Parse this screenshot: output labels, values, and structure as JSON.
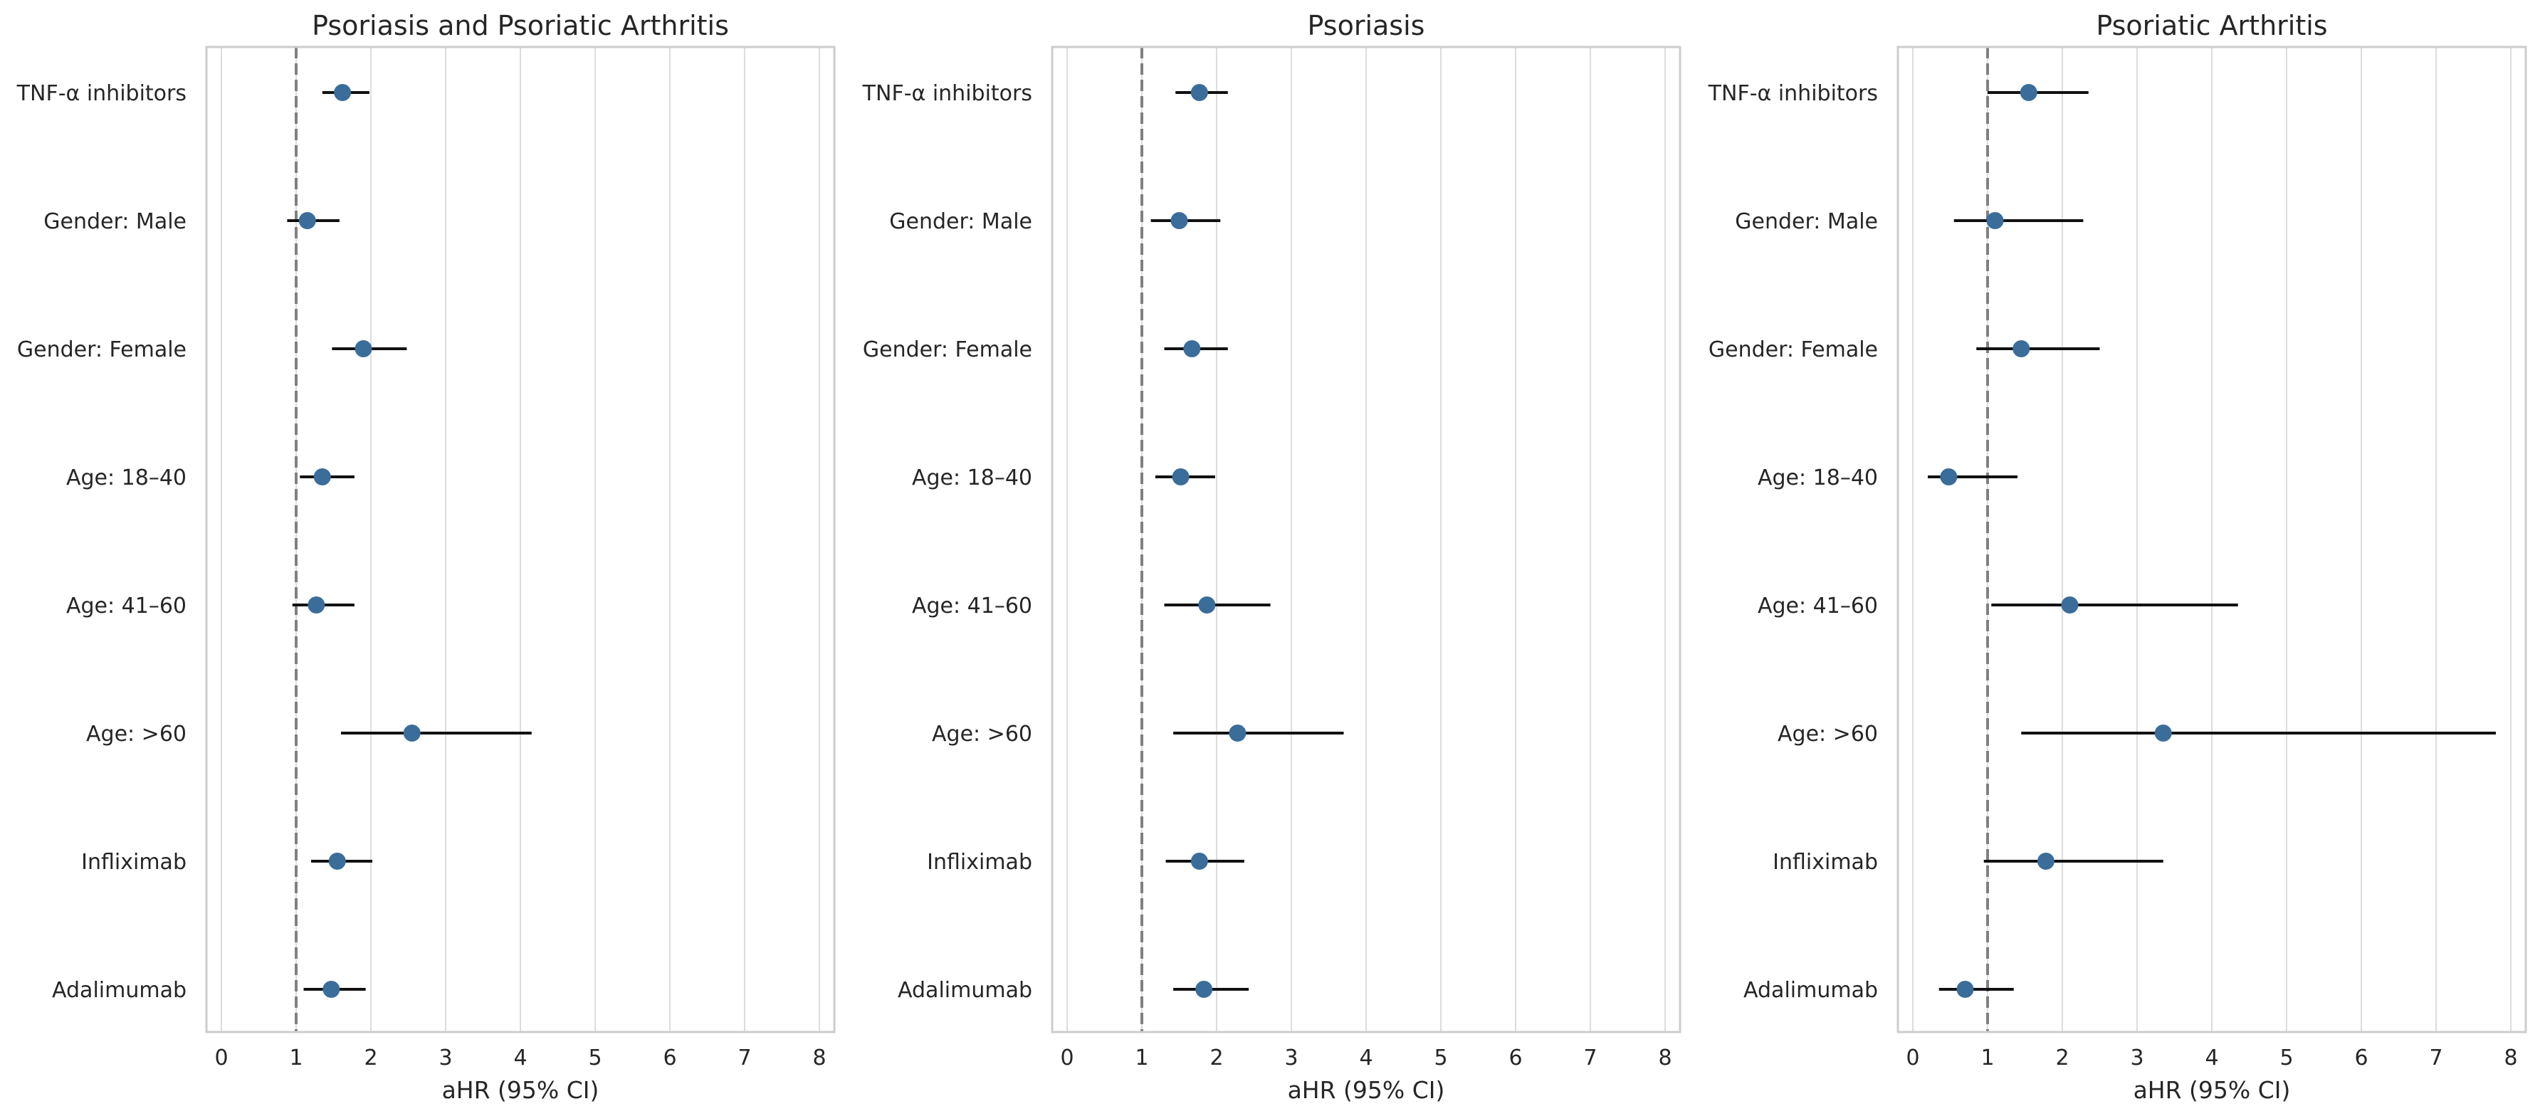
{
  "chart_data": [
    {
      "type": "scatter",
      "subtype": "forest-plot",
      "title": "Psoriasis and Psoriatic Arthritis",
      "xlabel": "aHR (95% CI)",
      "ylabel": "",
      "xlim": [
        -0.2,
        8.2
      ],
      "xticks": [
        0,
        1,
        2,
        3,
        4,
        5,
        6,
        7,
        8
      ],
      "reference_line": 1,
      "grid": "vertical",
      "categories": [
        "TNF-α inhibitors",
        "Gender: Male",
        "Gender: Female",
        "Age: 18–40",
        "Age: 41–60",
        "Age: >60",
        "Infliximab",
        "Adalimumab"
      ],
      "values": [
        1.62,
        1.15,
        1.9,
        1.35,
        1.27,
        2.55,
        1.55,
        1.47
      ],
      "ci_lower": [
        1.35,
        0.88,
        1.48,
        1.05,
        0.95,
        1.6,
        1.2,
        1.1
      ],
      "ci_upper": [
        1.98,
        1.58,
        2.48,
        1.78,
        1.78,
        4.15,
        2.02,
        1.93
      ]
    },
    {
      "type": "scatter",
      "subtype": "forest-plot",
      "title": "Psoriasis",
      "xlabel": "aHR (95% CI)",
      "ylabel": "",
      "xlim": [
        -0.2,
        8.2
      ],
      "xticks": [
        0,
        1,
        2,
        3,
        4,
        5,
        6,
        7,
        8
      ],
      "reference_line": 1,
      "grid": "vertical",
      "categories": [
        "TNF-α inhibitors",
        "Gender: Male",
        "Gender: Female",
        "Age: 18–40",
        "Age: 41–60",
        "Age: >60",
        "Infliximab",
        "Adalimumab"
      ],
      "values": [
        1.77,
        1.5,
        1.67,
        1.52,
        1.87,
        2.28,
        1.77,
        1.83
      ],
      "ci_lower": [
        1.45,
        1.12,
        1.3,
        1.18,
        1.3,
        1.42,
        1.32,
        1.42
      ],
      "ci_upper": [
        2.15,
        2.05,
        2.15,
        1.98,
        2.72,
        3.7,
        2.37,
        2.43
      ]
    },
    {
      "type": "scatter",
      "subtype": "forest-plot",
      "title": "Psoriatic Arthritis",
      "xlabel": "aHR (95% CI)",
      "ylabel": "",
      "xlim": [
        -0.2,
        8.2
      ],
      "xticks": [
        0,
        1,
        2,
        3,
        4,
        5,
        6,
        7,
        8
      ],
      "reference_line": 1,
      "grid": "vertical",
      "categories": [
        "TNF-α inhibitors",
        "Gender: Male",
        "Gender: Female",
        "Age: 18–40",
        "Age: 41–60",
        "Age: >60",
        "Infliximab",
        "Adalimumab"
      ],
      "values": [
        1.55,
        1.1,
        1.45,
        0.48,
        2.1,
        3.35,
        1.78,
        0.7
      ],
      "ci_lower": [
        1.0,
        0.55,
        0.85,
        0.2,
        1.05,
        1.45,
        0.95,
        0.35
      ],
      "ci_upper": [
        2.35,
        2.28,
        2.5,
        1.4,
        4.35,
        7.8,
        3.35,
        1.35
      ]
    }
  ],
  "colors": {
    "marker": "#3a6d9a",
    "errorbar": "#111111",
    "reference_line": "#808080",
    "grid": "#dddddd",
    "frame": "#cccccc",
    "text": "#262626"
  }
}
